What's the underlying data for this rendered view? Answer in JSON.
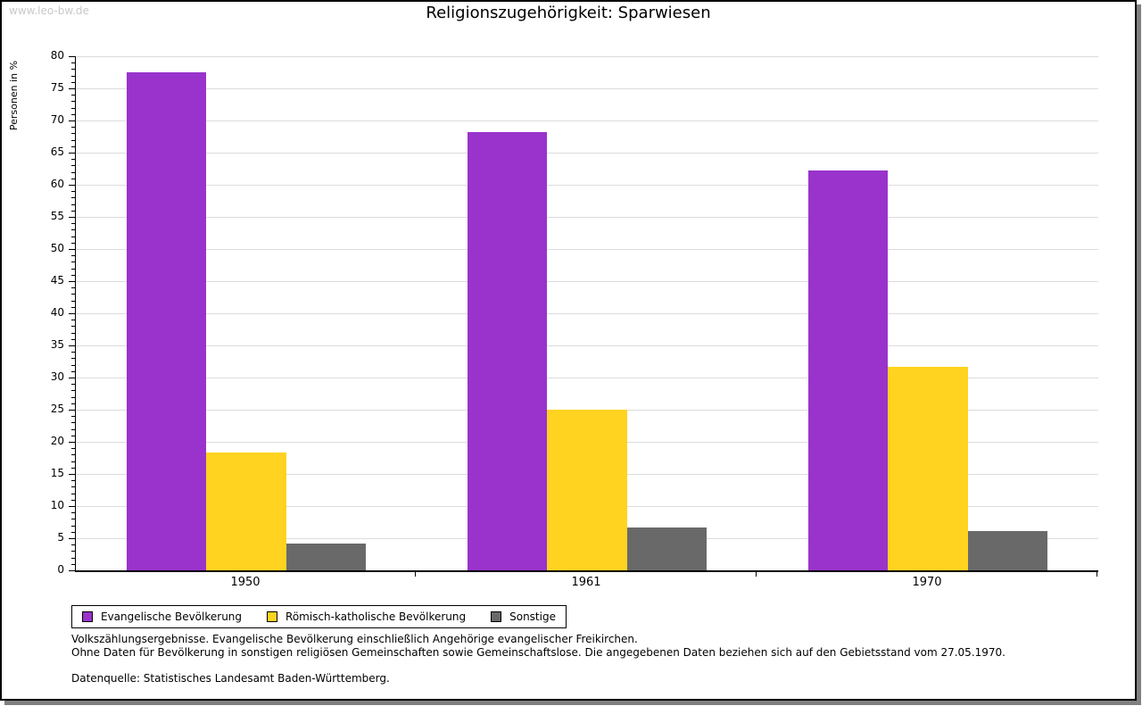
{
  "watermark": "www.leo-bw.de",
  "chart_data": {
    "type": "bar",
    "title": "Religionszugehörigkeit: Sparwiesen",
    "ylabel": "Personen in %",
    "xlabel": "",
    "categories": [
      "1950",
      "1961",
      "1970"
    ],
    "series": [
      {
        "name": "Evangelische Bevölkerung",
        "color": "#9933CC",
        "values": [
          77.5,
          68.2,
          62.2
        ]
      },
      {
        "name": "Römisch-katholische Bevölkerung",
        "color": "#FFD320",
        "values": [
          18.4,
          25.0,
          31.7
        ]
      },
      {
        "name": "Sonstige",
        "color": "#696969",
        "values": [
          4.1,
          6.6,
          6.1
        ]
      }
    ],
    "ylim": [
      0,
      80
    ],
    "ytick_step": 5,
    "minor_tick_step": 1,
    "grid": true,
    "gridline_color": "#dcdcdc",
    "legend_position": "bottom"
  },
  "footnotes": {
    "line1": "Volkszählungsergebnisse. Evangelische Bevölkerung einschließlich Angehörige evangelischer Freikirchen.",
    "line2": "Ohne Daten für Bevölkerung in sonstigen religiösen Gemeinschaften sowie Gemeinschaftslose. Die angegebenen Daten beziehen sich auf den Gebietsstand vom 27.05.1970.",
    "source": "Datenquelle: Statistisches Landesamt Baden-Württemberg."
  }
}
